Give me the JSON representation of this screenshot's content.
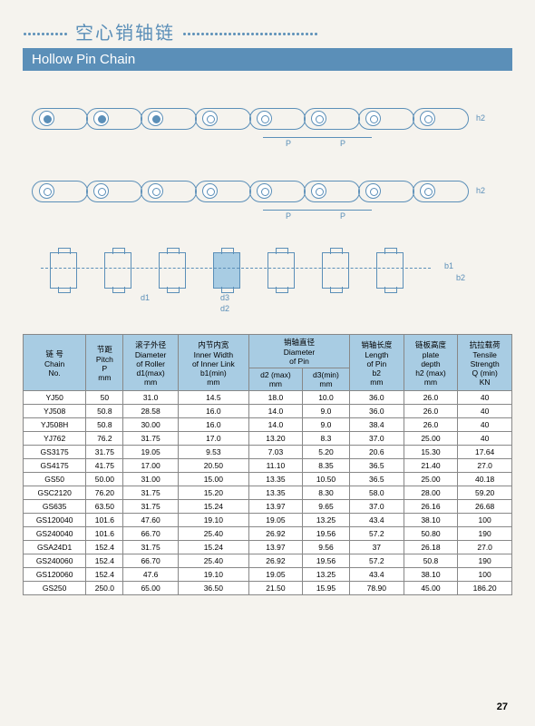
{
  "header": {
    "title_cn": "空心销轴链",
    "subtitle_en": "Hollow Pin Chain"
  },
  "diagram": {
    "labels": {
      "p": "P",
      "h2": "h2",
      "d1": "d1",
      "d2": "d2",
      "d3": "d3",
      "b1": "b1",
      "b2": "b2"
    },
    "color": "#5b8fb8"
  },
  "table": {
    "header_bg": "#a8cce3",
    "headers": {
      "chain_no": [
        "链 号",
        "Chain",
        "No."
      ],
      "pitch": [
        "节距",
        "Pitch",
        "P",
        "mm"
      ],
      "roller_dia": [
        "滚子外径",
        "Diameter",
        "of Roller",
        "d1(max)",
        "mm"
      ],
      "inner_width": [
        "内节内宽",
        "Inner Width",
        "of Inner Link",
        "b1(min)",
        "mm"
      ],
      "pin_dia": [
        "销轴直径",
        "Diameter",
        "of Pin"
      ],
      "pin_d2": [
        "d2 (max)",
        "mm"
      ],
      "pin_d3": [
        "d3(min)",
        "mm"
      ],
      "pin_len": [
        "销轴长度",
        "Length",
        "of Pin",
        "b2",
        "mm"
      ],
      "plate_depth": [
        "链板高度",
        "plate",
        "depth",
        "h2 (max)",
        "mm"
      ],
      "tensile": [
        "抗拉载荷",
        "Tensile",
        "Strength",
        "Q (min)",
        "KN"
      ]
    },
    "rows": [
      [
        "YJ50",
        "50",
        "31.0",
        "14.5",
        "18.0",
        "10.0",
        "36.0",
        "26.0",
        "40"
      ],
      [
        "YJ508",
        "50.8",
        "28.58",
        "16.0",
        "14.0",
        "9.0",
        "36.0",
        "26.0",
        "40"
      ],
      [
        "YJ508H",
        "50.8",
        "30.00",
        "16.0",
        "14.0",
        "9.0",
        "38.4",
        "26.0",
        "40"
      ],
      [
        "YJ762",
        "76.2",
        "31.75",
        "17.0",
        "13.20",
        "8.3",
        "37.0",
        "25.00",
        "40"
      ],
      [
        "GS3175",
        "31.75",
        "19.05",
        "9.53",
        "7.03",
        "5.20",
        "20.6",
        "15.30",
        "17.64"
      ],
      [
        "GS4175",
        "41.75",
        "17.00",
        "20.50",
        "11.10",
        "8.35",
        "36.5",
        "21.40",
        "27.0"
      ],
      [
        "GS50",
        "50.00",
        "31.00",
        "15.00",
        "13.35",
        "10.50",
        "36.5",
        "25.00",
        "40.18"
      ],
      [
        "GSC2120",
        "76.20",
        "31.75",
        "15.20",
        "13.35",
        "8.30",
        "58.0",
        "28.00",
        "59.20"
      ],
      [
        "GS635",
        "63.50",
        "31.75",
        "15.24",
        "13.97",
        "9.65",
        "37.0",
        "26.16",
        "26.68"
      ],
      [
        "GS120040",
        "101.6",
        "47.60",
        "19.10",
        "19.05",
        "13.25",
        "43.4",
        "38.10",
        "100"
      ],
      [
        "GS240040",
        "101.6",
        "66.70",
        "25.40",
        "26.92",
        "19.56",
        "57.2",
        "50.80",
        "190"
      ],
      [
        "GSA24D1",
        "152.4",
        "31.75",
        "15.24",
        "13.97",
        "9.56",
        "37",
        "26.18",
        "27.0"
      ],
      [
        "GS240060",
        "152.4",
        "66.70",
        "25.40",
        "26.92",
        "19.56",
        "57.2",
        "50.8",
        "190"
      ],
      [
        "GS120060",
        "152.4",
        "47.6",
        "19.10",
        "19.05",
        "13.25",
        "43.4",
        "38.10",
        "100"
      ],
      [
        "GS250",
        "250.0",
        "65.00",
        "36.50",
        "21.50",
        "15.95",
        "78.90",
        "45.00",
        "186.20"
      ]
    ]
  },
  "page_number": "27"
}
